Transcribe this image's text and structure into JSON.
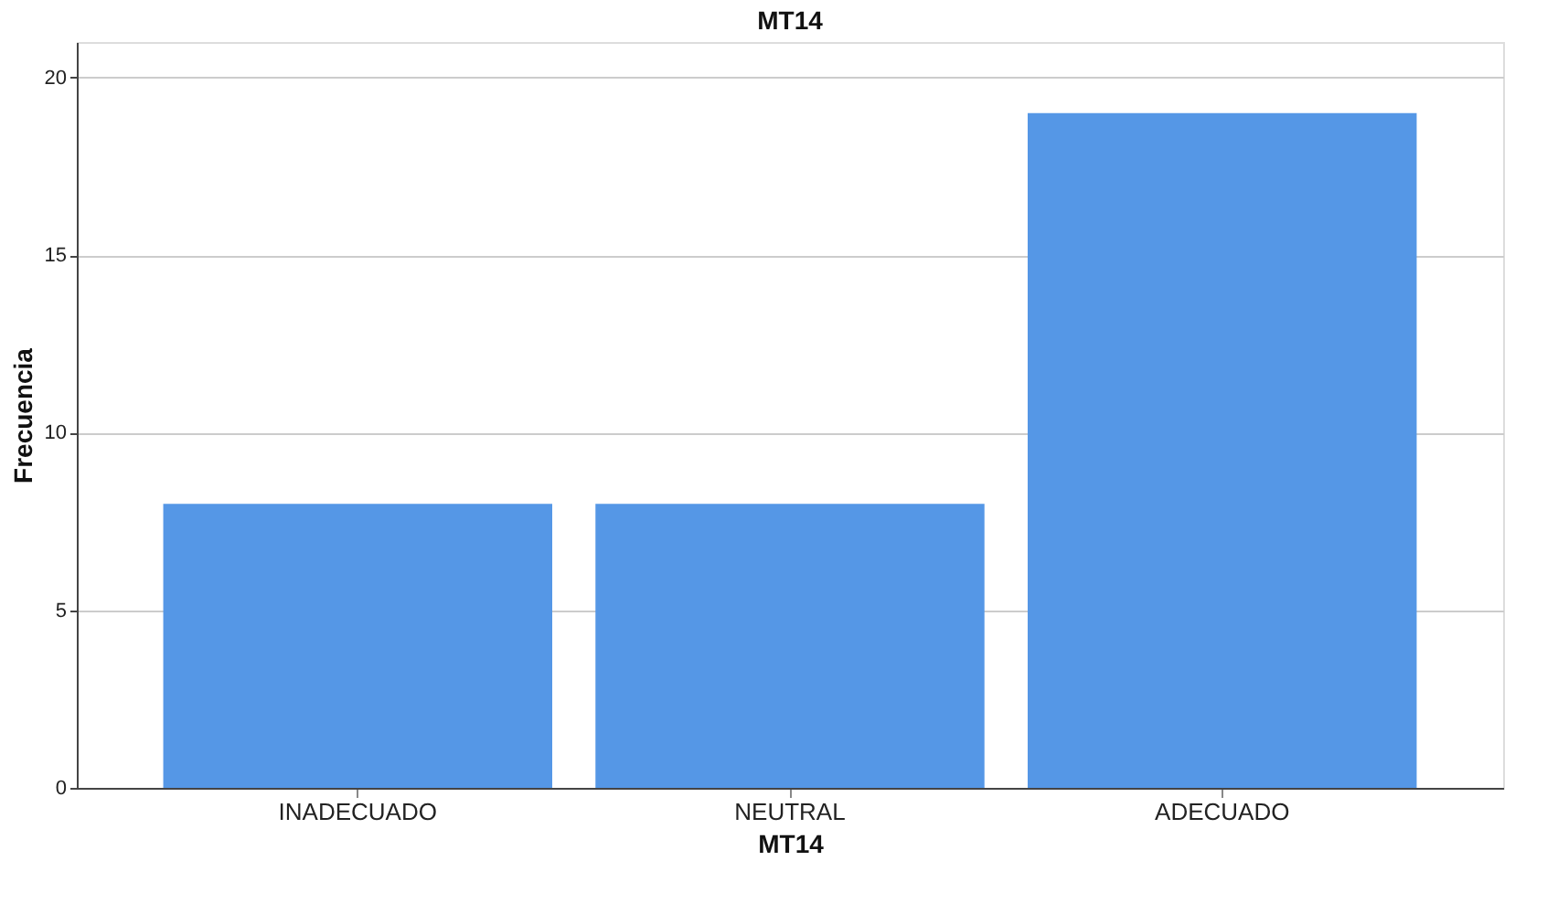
{
  "chart_data": {
    "type": "bar",
    "title": "MT14",
    "xlabel": "MT14",
    "ylabel": "Frecuencia",
    "categories": [
      "INADECUADO",
      "NEUTRAL",
      "ADECUADO"
    ],
    "values": [
      8,
      8,
      19
    ],
    "color": "#5597e6",
    "ylim": [
      0,
      21
    ],
    "yticks": [
      0,
      5,
      10,
      15,
      20
    ],
    "grid": "y"
  }
}
